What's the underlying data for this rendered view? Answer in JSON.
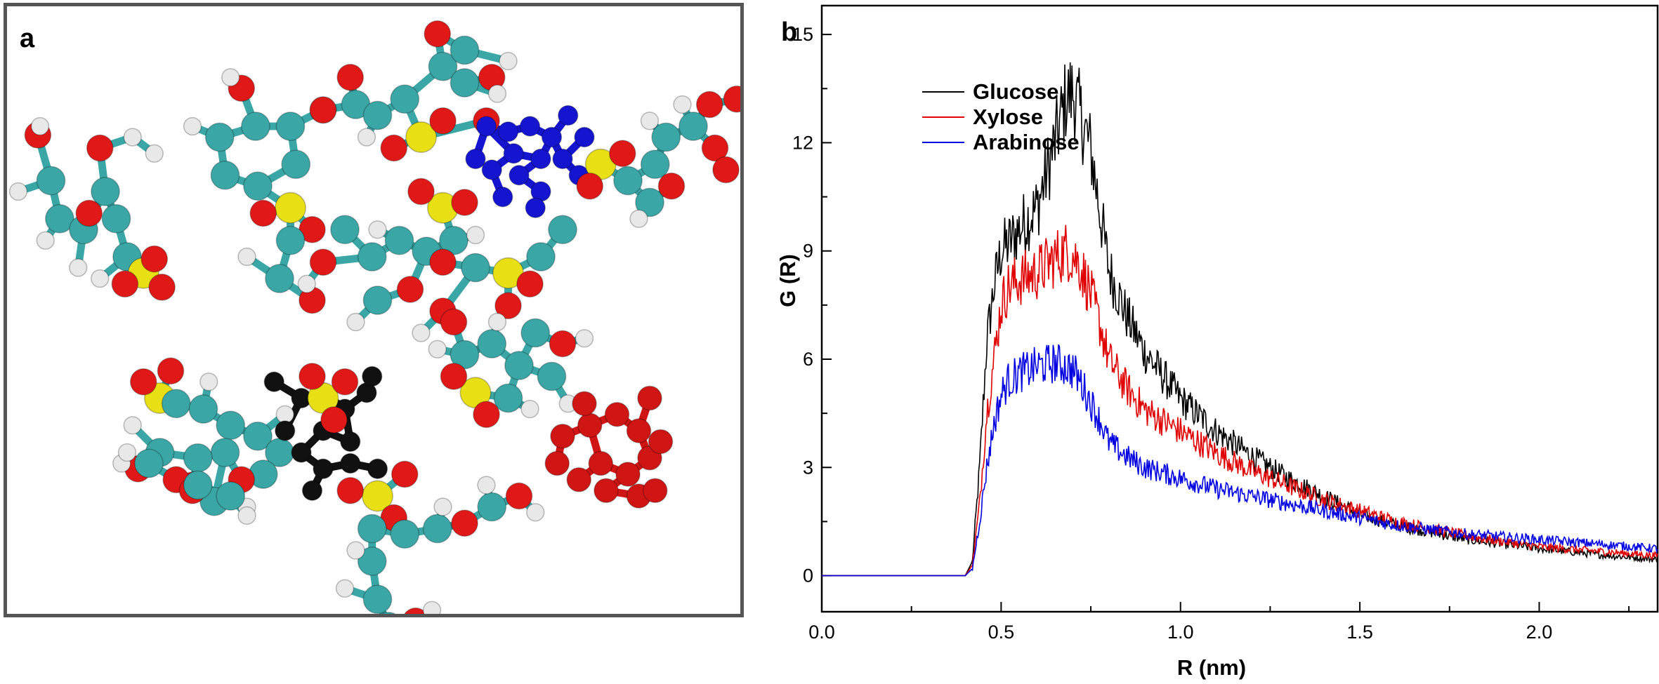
{
  "panels": {
    "a_label": "a",
    "b_label": "b"
  },
  "colors": {
    "carbon": "#3aa6a6",
    "oxygen": "#e01818",
    "hydrogen": "#e8e8e8",
    "sulfur": "#e8e015",
    "bond": "#3aa6a6",
    "blue_molecule": "#1515d0",
    "black_molecule": "#111111",
    "red_molecule": "#d01515"
  },
  "chart_data": {
    "type": "line",
    "xlabel": "R (nm)",
    "ylabel": "G (R)",
    "xlim": [
      0.0,
      2.33
    ],
    "ylim": [
      -1.0,
      15.8
    ],
    "xticks": [
      "0.0",
      "0.5",
      "1.0",
      "1.5",
      "2.0"
    ],
    "yticks": [
      "0",
      "3",
      "6",
      "9",
      "12",
      "15"
    ],
    "legend": "top-right",
    "series": [
      {
        "name": "Glucose",
        "color": "#000000",
        "x": [
          0.0,
          0.4,
          0.42,
          0.44,
          0.46,
          0.48,
          0.5,
          0.52,
          0.55,
          0.6,
          0.65,
          0.68,
          0.7,
          0.72,
          0.75,
          0.78,
          0.8,
          0.85,
          0.9,
          1.0,
          1.1,
          1.2,
          1.3,
          1.4,
          1.5,
          1.6,
          1.8,
          2.0,
          2.2,
          2.33
        ],
        "y": [
          0.0,
          0.0,
          0.4,
          3.0,
          6.5,
          8.0,
          9.0,
          9.2,
          9.6,
          10.2,
          12.0,
          13.2,
          13.4,
          12.8,
          11.8,
          9.8,
          8.5,
          7.2,
          6.2,
          4.9,
          4.0,
          3.3,
          2.7,
          2.2,
          1.7,
          1.4,
          1.0,
          0.75,
          0.55,
          0.45
        ]
      },
      {
        "name": "Xylose",
        "color": "#e00000",
        "x": [
          0.0,
          0.4,
          0.42,
          0.44,
          0.46,
          0.48,
          0.5,
          0.52,
          0.55,
          0.6,
          0.65,
          0.68,
          0.7,
          0.72,
          0.75,
          0.78,
          0.8,
          0.85,
          0.9,
          1.0,
          1.1,
          1.2,
          1.3,
          1.4,
          1.5,
          1.6,
          1.8,
          2.0,
          2.2,
          2.33
        ],
        "y": [
          0.0,
          0.0,
          0.3,
          2.0,
          4.5,
          6.0,
          7.5,
          8.0,
          8.2,
          8.4,
          8.8,
          9.0,
          8.9,
          8.6,
          7.8,
          6.8,
          6.0,
          5.2,
          4.6,
          4.0,
          3.4,
          2.9,
          2.5,
          2.1,
          1.8,
          1.5,
          1.1,
          0.8,
          0.65,
          0.55
        ]
      },
      {
        "name": "Arabinose",
        "color": "#0000e0",
        "x": [
          0.0,
          0.4,
          0.42,
          0.44,
          0.46,
          0.48,
          0.5,
          0.52,
          0.55,
          0.6,
          0.65,
          0.68,
          0.7,
          0.72,
          0.75,
          0.78,
          0.8,
          0.85,
          0.9,
          1.0,
          1.1,
          1.2,
          1.3,
          1.4,
          1.5,
          1.6,
          1.8,
          2.0,
          2.2,
          2.33
        ],
        "y": [
          0.0,
          0.0,
          0.2,
          1.5,
          3.0,
          4.2,
          5.0,
          5.4,
          5.6,
          5.8,
          5.9,
          5.8,
          5.7,
          5.4,
          4.8,
          4.2,
          3.7,
          3.3,
          3.0,
          2.7,
          2.4,
          2.2,
          2.0,
          1.8,
          1.6,
          1.4,
          1.15,
          1.0,
          0.85,
          0.75
        ]
      }
    ]
  }
}
